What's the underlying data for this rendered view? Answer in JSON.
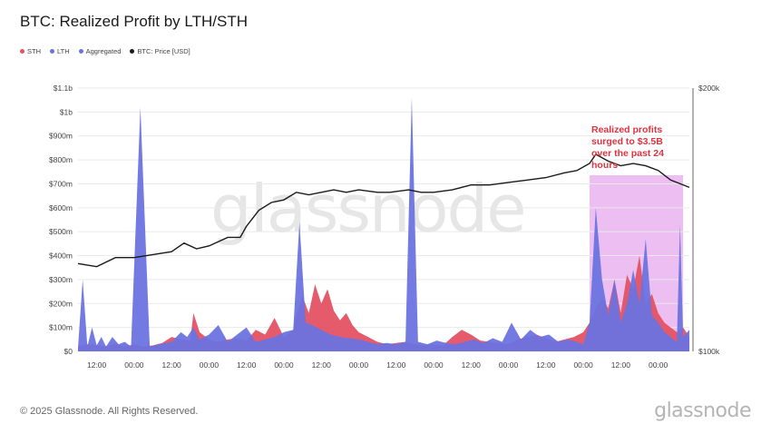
{
  "title": "BTC: Realized Profit by LTH/STH",
  "legend": [
    {
      "label": "STH",
      "color": "#e45264"
    },
    {
      "label": "LTH",
      "color": "#6b73e0"
    },
    {
      "label": "Aggregated",
      "color": "#6b73e0"
    },
    {
      "label": "BTC: Price [USD]",
      "color": "#1a1a1a"
    }
  ],
  "annotation": {
    "lines": [
      "Realized profits",
      "surged to $3.5B",
      "over the past 24",
      "hours"
    ],
    "color": "#e0333f"
  },
  "watermark": "glassnode",
  "footer": {
    "copyright": "© 2025 Glassnode. All Rights Reserved.",
    "logo": "glassnode"
  },
  "chart_data": {
    "type": "area",
    "y_left": {
      "ticks": [
        "$0",
        "$100m",
        "$200m",
        "$300m",
        "$400m",
        "$500m",
        "$600m",
        "$700m",
        "$800m",
        "$900m",
        "$1b",
        "$1.1b"
      ],
      "values": [
        0,
        100,
        200,
        300,
        400,
        500,
        600,
        700,
        800,
        900,
        1000,
        1100
      ],
      "unit": "$m",
      "ylim": [
        0,
        1100
      ]
    },
    "y_right": {
      "ticks": [
        "$100k",
        "$200k"
      ],
      "values": [
        100000,
        200000
      ],
      "log": true,
      "ylim": [
        100000,
        200000
      ]
    },
    "x_ticks": [
      "12:00",
      "00:00",
      "12:00",
      "00:00",
      "12:00",
      "00:00",
      "12:00",
      "00:00",
      "12:00",
      "00:00",
      "12:00",
      "00:00",
      "12:00",
      "00:00",
      "12:00",
      "00:00"
    ],
    "x_tick_positions_h": [
      6,
      18,
      30,
      42,
      54,
      66,
      78,
      90,
      102,
      114,
      126,
      138,
      150,
      162,
      174,
      186
    ],
    "x_range_h": [
      0,
      196
    ],
    "highlight_h": [
      164,
      194
    ],
    "highlight_color": "#dd88e6",
    "grid": true,
    "series": [
      {
        "name": "STH",
        "color": "#e45264",
        "points": [
          [
            0,
            20
          ],
          [
            3,
            30
          ],
          [
            6,
            25
          ],
          [
            9,
            22
          ],
          [
            12,
            30
          ],
          [
            15,
            20
          ],
          [
            18,
            30
          ],
          [
            21,
            20
          ],
          [
            24,
            25
          ],
          [
            27,
            35
          ],
          [
            30,
            60
          ],
          [
            33,
            50
          ],
          [
            36,
            45
          ],
          [
            37,
            160
          ],
          [
            39,
            80
          ],
          [
            42,
            50
          ],
          [
            45,
            40
          ],
          [
            48,
            50
          ],
          [
            51,
            55
          ],
          [
            54,
            45
          ],
          [
            57,
            90
          ],
          [
            60,
            70
          ],
          [
            63,
            140
          ],
          [
            66,
            60
          ],
          [
            69,
            90
          ],
          [
            70,
            150
          ],
          [
            72,
            230
          ],
          [
            74,
            160
          ],
          [
            76,
            280
          ],
          [
            78,
            200
          ],
          [
            80,
            260
          ],
          [
            82,
            170
          ],
          [
            84,
            130
          ],
          [
            86,
            160
          ],
          [
            88,
            110
          ],
          [
            90,
            80
          ],
          [
            93,
            60
          ],
          [
            96,
            40
          ],
          [
            99,
            30
          ],
          [
            102,
            35
          ],
          [
            105,
            40
          ],
          [
            108,
            30
          ],
          [
            111,
            25
          ],
          [
            114,
            30
          ],
          [
            117,
            25
          ],
          [
            120,
            60
          ],
          [
            123,
            90
          ],
          [
            126,
            70
          ],
          [
            129,
            45
          ],
          [
            132,
            40
          ],
          [
            135,
            35
          ],
          [
            138,
            30
          ],
          [
            141,
            50
          ],
          [
            144,
            60
          ],
          [
            147,
            70
          ],
          [
            150,
            55
          ],
          [
            153,
            40
          ],
          [
            156,
            50
          ],
          [
            159,
            60
          ],
          [
            162,
            80
          ],
          [
            164,
            120
          ],
          [
            166,
            180
          ],
          [
            168,
            220
          ],
          [
            170,
            180
          ],
          [
            172,
            300
          ],
          [
            174,
            160
          ],
          [
            176,
            320
          ],
          [
            178,
            260
          ],
          [
            180,
            400
          ],
          [
            182,
            200
          ],
          [
            184,
            240
          ],
          [
            186,
            160
          ],
          [
            188,
            120
          ],
          [
            190,
            100
          ],
          [
            192,
            80
          ],
          [
            194,
            100
          ],
          [
            196,
            60
          ]
        ]
      },
      {
        "name": "LTH",
        "color": "#6b73e0",
        "points": [
          [
            0,
            15
          ],
          [
            1.5,
            300
          ],
          [
            3,
            20
          ],
          [
            4.5,
            100
          ],
          [
            6,
            25
          ],
          [
            7.5,
            60
          ],
          [
            9,
            20
          ],
          [
            11,
            60
          ],
          [
            13,
            30
          ],
          [
            15,
            40
          ],
          [
            17,
            20
          ],
          [
            20,
            1020
          ],
          [
            23,
            20
          ],
          [
            26,
            30
          ],
          [
            30,
            40
          ],
          [
            33,
            80
          ],
          [
            35,
            60
          ],
          [
            37,
            100
          ],
          [
            39,
            50
          ],
          [
            42,
            70
          ],
          [
            45,
            110
          ],
          [
            48,
            40
          ],
          [
            51,
            70
          ],
          [
            54,
            100
          ],
          [
            57,
            40
          ],
          [
            60,
            50
          ],
          [
            63,
            60
          ],
          [
            66,
            80
          ],
          [
            69,
            90
          ],
          [
            71,
            540
          ],
          [
            73,
            120
          ],
          [
            75,
            110
          ],
          [
            78,
            90
          ],
          [
            81,
            70
          ],
          [
            84,
            60
          ],
          [
            87,
            55
          ],
          [
            90,
            50
          ],
          [
            93,
            40
          ],
          [
            96,
            30
          ],
          [
            99,
            35
          ],
          [
            102,
            30
          ],
          [
            105,
            40
          ],
          [
            107,
            1060
          ],
          [
            109,
            40
          ],
          [
            112,
            30
          ],
          [
            115,
            45
          ],
          [
            118,
            35
          ],
          [
            121,
            30
          ],
          [
            124,
            40
          ],
          [
            127,
            50
          ],
          [
            130,
            35
          ],
          [
            133,
            55
          ],
          [
            136,
            40
          ],
          [
            139,
            120
          ],
          [
            142,
            50
          ],
          [
            145,
            90
          ],
          [
            148,
            60
          ],
          [
            151,
            70
          ],
          [
            154,
            40
          ],
          [
            157,
            50
          ],
          [
            160,
            40
          ],
          [
            162,
            30
          ],
          [
            164,
            120
          ],
          [
            166,
            600
          ],
          [
            168,
            300
          ],
          [
            170,
            150
          ],
          [
            172,
            300
          ],
          [
            174,
            120
          ],
          [
            176,
            200
          ],
          [
            178,
            340
          ],
          [
            180,
            200
          ],
          [
            182,
            470
          ],
          [
            184,
            150
          ],
          [
            186,
            120
          ],
          [
            188,
            80
          ],
          [
            190,
            60
          ],
          [
            192,
            40
          ],
          [
            193,
            530
          ],
          [
            194,
            60
          ],
          [
            196,
            90
          ]
        ]
      },
      {
        "name": "BTC: Price [USD]",
        "color": "#1a1a1a",
        "points": [
          [
            0,
            126000
          ],
          [
            6,
            125000
          ],
          [
            12,
            128000
          ],
          [
            18,
            128000
          ],
          [
            24,
            129000
          ],
          [
            30,
            130000
          ],
          [
            34,
            133000
          ],
          [
            38,
            131000
          ],
          [
            42,
            132000
          ],
          [
            48,
            135000
          ],
          [
            52,
            135000
          ],
          [
            54,
            139000
          ],
          [
            58,
            145000
          ],
          [
            62,
            148000
          ],
          [
            66,
            149000
          ],
          [
            70,
            152000
          ],
          [
            74,
            151000
          ],
          [
            78,
            152000
          ],
          [
            82,
            153000
          ],
          [
            86,
            152000
          ],
          [
            90,
            153000
          ],
          [
            96,
            152000
          ],
          [
            100,
            152000
          ],
          [
            106,
            153000
          ],
          [
            110,
            152000
          ],
          [
            114,
            152000
          ],
          [
            120,
            153000
          ],
          [
            126,
            155000
          ],
          [
            132,
            155000
          ],
          [
            138,
            156000
          ],
          [
            144,
            157000
          ],
          [
            150,
            158000
          ],
          [
            156,
            160000
          ],
          [
            160,
            161000
          ],
          [
            164,
            164000
          ],
          [
            166,
            168000
          ],
          [
            170,
            165000
          ],
          [
            174,
            163000
          ],
          [
            178,
            164000
          ],
          [
            182,
            163000
          ],
          [
            186,
            161000
          ],
          [
            190,
            157000
          ],
          [
            194,
            155000
          ],
          [
            196,
            154000
          ]
        ]
      }
    ]
  }
}
